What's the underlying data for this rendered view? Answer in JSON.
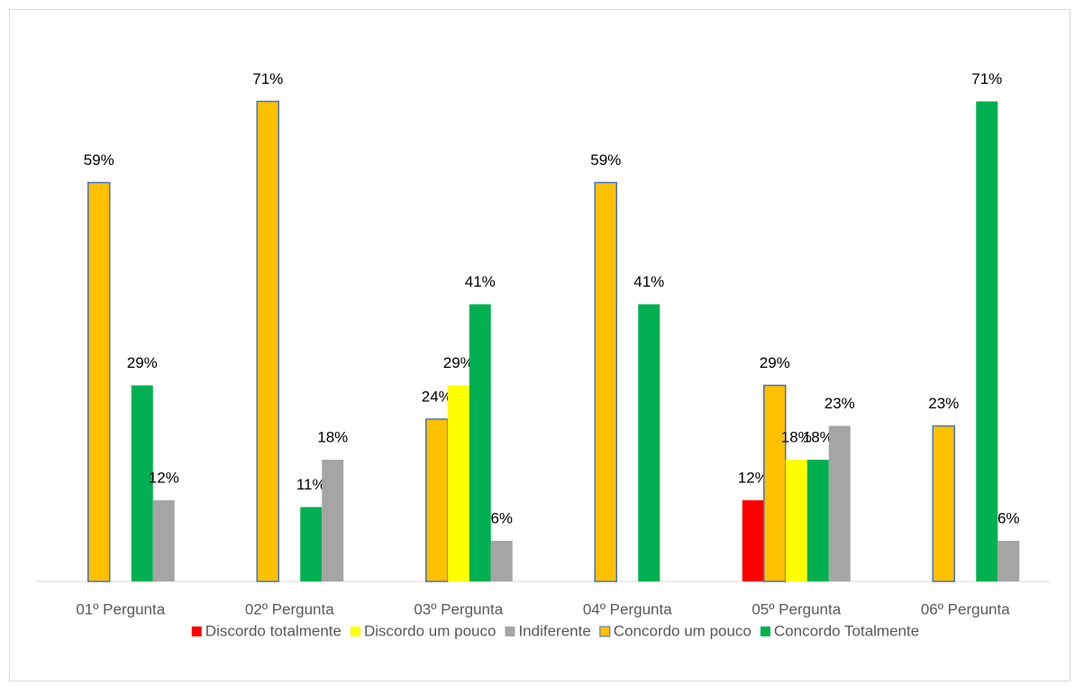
{
  "chart_data": {
    "type": "bar",
    "categories": [
      "01º Pergunta",
      "02º Pergunta",
      "03º Pergunta",
      "04º Pergunta",
      "05º Pergunta",
      "06º Pergunta"
    ],
    "series": [
      {
        "name": "Discordo totalmente",
        "color": "#ff0000",
        "label_color": "#404040",
        "values": [
          null,
          null,
          null,
          null,
          12,
          null
        ],
        "value_labels": [
          null,
          null,
          null,
          null,
          "12%",
          null
        ]
      },
      {
        "name": "Discordo um pouco",
        "color": "#ffff00",
        "label_color": "#000000",
        "values": [
          null,
          null,
          29,
          null,
          18,
          null
        ],
        "value_labels": [
          null,
          null,
          "29%",
          null,
          "18%",
          null
        ]
      },
      {
        "name": "Indiferente",
        "color": "#a5a5a5",
        "label_color": "#595959",
        "values": [
          12,
          18,
          6,
          null,
          23,
          6
        ],
        "value_labels": [
          "12%",
          "18%",
          "6%",
          null,
          "23%",
          "6%"
        ]
      },
      {
        "name": "Concordo um pouco",
        "color": "#ffc000",
        "edgecolor": "#4472c4",
        "label_color": "#000000",
        "values": [
          59,
          71,
          24,
          59,
          29,
          23
        ],
        "value_labels": [
          "59%",
          "71%",
          "24%",
          "59%",
          "29%",
          "23%"
        ]
      },
      {
        "name": "Concordo Totalmente",
        "color": "#00b050",
        "label_color": "#000000",
        "values": [
          29,
          11,
          41,
          41,
          18,
          71
        ],
        "value_labels": [
          "29%",
          "11%",
          "41%",
          "41%",
          "18%",
          "71%"
        ]
      }
    ],
    "ylim": [
      0,
      80
    ]
  }
}
